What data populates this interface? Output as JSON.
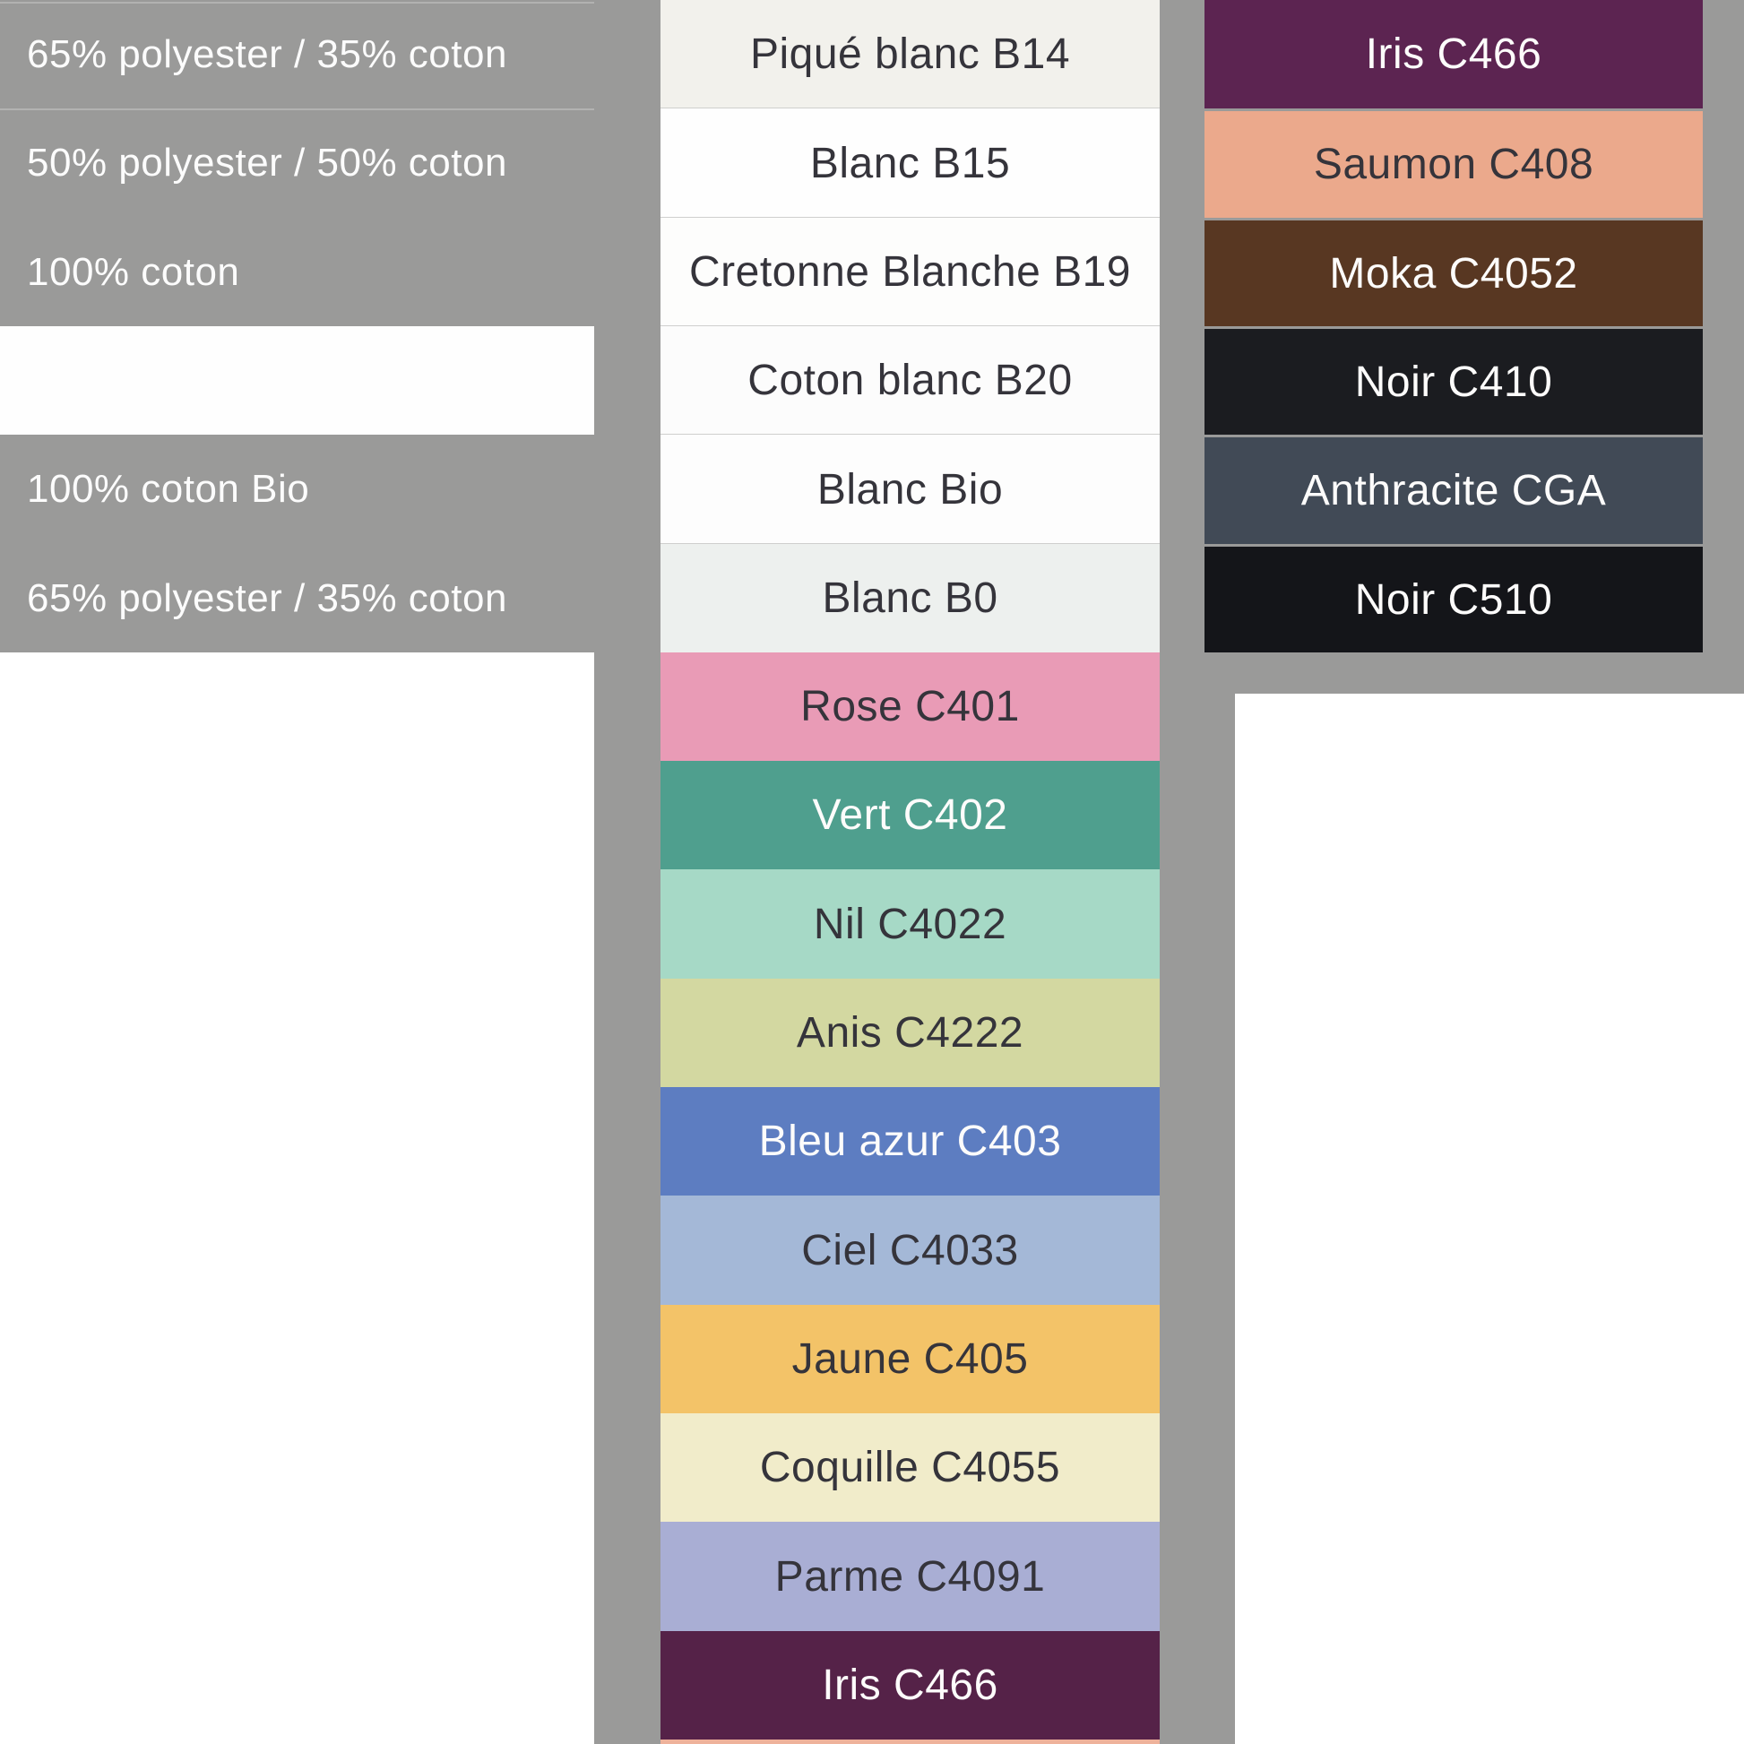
{
  "page": {
    "background": "#9a9a99",
    "left_panel_divider_color": "#b2b2b1",
    "white_swatch_divider_color": "#cfcfce"
  },
  "left_panel": {
    "rows": [
      {
        "label": "65% polyester / 35% coton",
        "blank": false
      },
      {
        "label": "50% polyester / 50% coton",
        "blank": false
      },
      {
        "label": "100% coton",
        "blank": false
      },
      {
        "label": "",
        "blank": true
      },
      {
        "label": "100% coton Bio",
        "blank": false
      },
      {
        "label": "65% polyester / 35% coton",
        "blank": false
      }
    ]
  },
  "middle_column": {
    "swatches": [
      {
        "label": "Piqué blanc B14",
        "color": "#f2f1ec",
        "text": "dark",
        "texture": "stripes-vertical",
        "divider_below": true
      },
      {
        "label": "Blanc B15",
        "color": "#fefefe",
        "text": "dark",
        "texture": "none",
        "divider_below": true
      },
      {
        "label": "Cretonne Blanche B19",
        "color": "#fdfdfc",
        "text": "dark",
        "texture": "none",
        "divider_below": true
      },
      {
        "label": "Coton blanc B20",
        "color": "#fcfcfc",
        "text": "dark",
        "texture": "none",
        "divider_below": true
      },
      {
        "label": "Blanc Bio",
        "color": "#fdfdfd",
        "text": "dark",
        "texture": "none",
        "divider_below": true
      },
      {
        "label": "Blanc B0",
        "color": "#edf0ee",
        "text": "dark",
        "texture": "none",
        "divider_below": false
      },
      {
        "label": "Rose C401",
        "color": "#e99bb6",
        "text": "dark",
        "texture": "weave-horizontal",
        "divider_below": false
      },
      {
        "label": "Vert C402",
        "color": "#4f9f8e",
        "text": "light",
        "texture": "none",
        "divider_below": false
      },
      {
        "label": "Nil C4022",
        "color": "#a6d9c6",
        "text": "dark",
        "texture": "none",
        "divider_below": false
      },
      {
        "label": "Anis C4222",
        "color": "#d3d8a1",
        "text": "dark",
        "texture": "none",
        "divider_below": false
      },
      {
        "label": "Bleu azur C403",
        "color": "#5d7dc1",
        "text": "light",
        "texture": "none",
        "divider_below": false
      },
      {
        "label": "Ciel C4033",
        "color": "#a4b8d7",
        "text": "dark",
        "texture": "none",
        "divider_below": false
      },
      {
        "label": "Jaune C405",
        "color": "#f3c368",
        "text": "dark",
        "texture": "weave-diagonal",
        "divider_below": false
      },
      {
        "label": "Coquille C4055",
        "color": "#f1ecca",
        "text": "dark",
        "texture": "none",
        "divider_below": false
      },
      {
        "label": "Parme C4091",
        "color": "#a9aed4",
        "text": "dark",
        "texture": "none",
        "divider_below": false
      },
      {
        "label": "Iris C466",
        "color": "#552248",
        "text": "light",
        "texture": "none",
        "divider_below": false
      }
    ],
    "partial_bottom_color": "#eeb29b"
  },
  "right_column": {
    "swatches": [
      {
        "label": "Iris C466",
        "color": "#5c2451",
        "text": "light",
        "texture": "none"
      },
      {
        "label": "Saumon C408",
        "color": "#eba98c",
        "text": "dark",
        "texture": "weave-diagonal-soft"
      },
      {
        "label": "Moka C4052",
        "color": "#583722",
        "text": "light",
        "texture": "none"
      },
      {
        "label": "Noir C410",
        "color": "#1b1c20",
        "text": "light",
        "texture": "none"
      },
      {
        "label": "Anthracite CGA",
        "color": "#414a56",
        "text": "light",
        "texture": "none"
      },
      {
        "label": "Noir C510",
        "color": "#141519",
        "text": "light",
        "texture": "none"
      }
    ]
  }
}
